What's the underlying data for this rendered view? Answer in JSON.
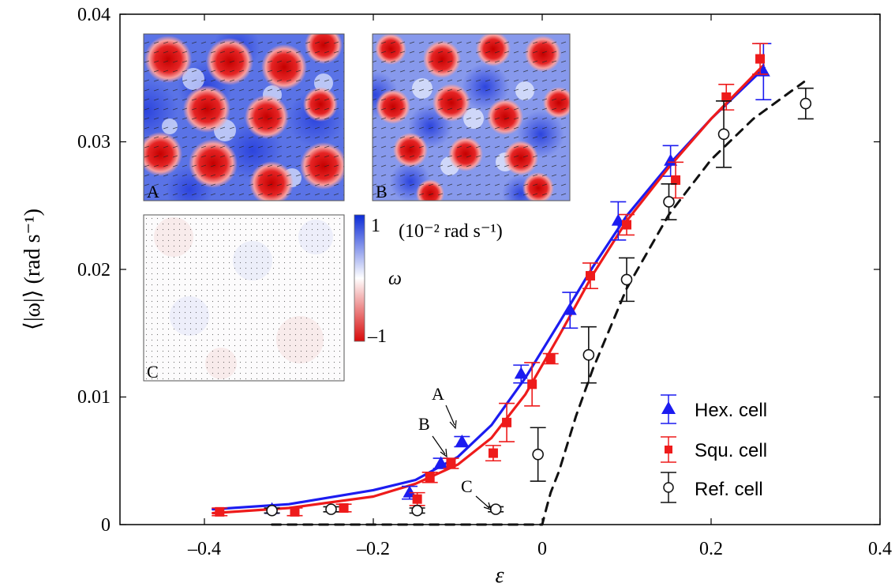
{
  "chart_data": {
    "type": "line",
    "xlabel": "ε",
    "ylabel": "⟨|ω|⟩ (rad s⁻¹)",
    "xlim": [
      -0.5,
      0.4
    ],
    "ylim": [
      0,
      0.04
    ],
    "xticks": [
      -0.4,
      -0.2,
      0,
      0.2,
      0.4
    ],
    "xtick_labels": [
      "–0.4",
      "–0.2",
      "0",
      "0.2",
      "0.4"
    ],
    "yticks": [
      0,
      0.01,
      0.02,
      0.03,
      0.04
    ],
    "ytick_labels": [
      "0",
      "0.01",
      "0.02",
      "0.03",
      "0.04"
    ],
    "grid": false,
    "legend_position": "bottom-right",
    "series": [
      {
        "name": "Hex. cell",
        "color": "#1c1cf0",
        "marker": "triangle",
        "points": [
          {
            "x": -0.32,
            "y": 0.0012,
            "err": 0.0003
          },
          {
            "x": -0.157,
            "y": 0.0025,
            "err": 0.0005
          },
          {
            "x": -0.12,
            "y": 0.0048,
            "err": 0.0004
          },
          {
            "x": -0.095,
            "y": 0.0065,
            "err": 0.0004
          },
          {
            "x": -0.025,
            "y": 0.0118,
            "err": 0.0007
          },
          {
            "x": 0.033,
            "y": 0.0168,
            "err": 0.0014
          },
          {
            "x": 0.09,
            "y": 0.0238,
            "err": 0.0015
          },
          {
            "x": 0.152,
            "y": 0.0285,
            "err": 0.0012
          },
          {
            "x": 0.262,
            "y": 0.0355,
            "err": 0.0022
          }
        ]
      },
      {
        "name": "Squ. cell",
        "color": "#ee1b1b",
        "marker": "square",
        "points": [
          {
            "x": -0.382,
            "y": 0.001,
            "err": 0.0003
          },
          {
            "x": -0.293,
            "y": 0.001,
            "err": 0.0003
          },
          {
            "x": -0.235,
            "y": 0.0013,
            "err": 0.0003
          },
          {
            "x": -0.148,
            "y": 0.002,
            "err": 0.0005
          },
          {
            "x": -0.133,
            "y": 0.0037,
            "err": 0.0004
          },
          {
            "x": -0.108,
            "y": 0.0048,
            "err": 0.0004
          },
          {
            "x": -0.058,
            "y": 0.0056,
            "err": 0.0006
          },
          {
            "x": -0.042,
            "y": 0.008,
            "err": 0.0015
          },
          {
            "x": -0.012,
            "y": 0.011,
            "err": 0.0017
          },
          {
            "x": 0.01,
            "y": 0.013,
            "err": 0.0004
          },
          {
            "x": 0.057,
            "y": 0.0195,
            "err": 0.001
          },
          {
            "x": 0.1,
            "y": 0.0235,
            "err": 0.0008
          },
          {
            "x": 0.158,
            "y": 0.027,
            "err": 0.0014
          },
          {
            "x": 0.218,
            "y": 0.0335,
            "err": 0.001
          },
          {
            "x": 0.258,
            "y": 0.0365,
            "err": 0.0012
          }
        ]
      },
      {
        "name": "Ref. cell",
        "color": "#111111",
        "marker": "circle-open",
        "points": [
          {
            "x": -0.32,
            "y": 0.0011,
            "err": 0.0002
          },
          {
            "x": -0.25,
            "y": 0.0012,
            "err": 0.0002
          },
          {
            "x": -0.148,
            "y": 0.0011,
            "err": 0.0002
          },
          {
            "x": -0.055,
            "y": 0.0012,
            "err": 0.0002
          },
          {
            "x": -0.005,
            "y": 0.0055,
            "err": 0.0021
          },
          {
            "x": 0.055,
            "y": 0.0133,
            "err": 0.0022
          },
          {
            "x": 0.1,
            "y": 0.0192,
            "err": 0.0017
          },
          {
            "x": 0.15,
            "y": 0.0253,
            "err": 0.0014
          },
          {
            "x": 0.215,
            "y": 0.0306,
            "err": 0.0026
          },
          {
            "x": 0.312,
            "y": 0.033,
            "err": 0.0012
          }
        ]
      }
    ],
    "fit_curves": [
      {
        "series": "Hex. cell",
        "color": "#1c1cf0",
        "style": "solid",
        "points": [
          [
            -0.39,
            0.0012
          ],
          [
            -0.3,
            0.0016
          ],
          [
            -0.2,
            0.0027
          ],
          [
            -0.15,
            0.0035
          ],
          [
            -0.1,
            0.0053
          ],
          [
            -0.06,
            0.0078
          ],
          [
            -0.02,
            0.0115
          ],
          [
            0.02,
            0.0158
          ],
          [
            0.06,
            0.0202
          ],
          [
            0.1,
            0.0242
          ],
          [
            0.15,
            0.0282
          ],
          [
            0.2,
            0.0318
          ],
          [
            0.263,
            0.0358
          ]
        ]
      },
      {
        "series": "Squ. cell",
        "color": "#ee1b1b",
        "style": "solid",
        "points": [
          [
            -0.39,
            0.0009
          ],
          [
            -0.3,
            0.0013
          ],
          [
            -0.2,
            0.0022
          ],
          [
            -0.15,
            0.0032
          ],
          [
            -0.1,
            0.0047
          ],
          [
            -0.06,
            0.0068
          ],
          [
            -0.02,
            0.0102
          ],
          [
            0.02,
            0.0148
          ],
          [
            0.06,
            0.0196
          ],
          [
            0.1,
            0.0238
          ],
          [
            0.15,
            0.028
          ],
          [
            0.2,
            0.0318
          ],
          [
            0.262,
            0.036
          ]
        ]
      },
      {
        "series": "Ref. cell",
        "color": "#111111",
        "style": "dashed",
        "points": [
          [
            -0.32,
            0.0
          ],
          [
            0.0,
            0.0
          ],
          [
            0.005,
            0.0013
          ],
          [
            0.01,
            0.0025
          ],
          [
            0.02,
            0.0042
          ],
          [
            0.04,
            0.0085
          ],
          [
            0.06,
            0.0122
          ],
          [
            0.1,
            0.0185
          ],
          [
            0.15,
            0.0243
          ],
          [
            0.2,
            0.0286
          ],
          [
            0.25,
            0.0318
          ],
          [
            0.31,
            0.0347
          ]
        ]
      }
    ],
    "annotations": [
      {
        "text": "A",
        "x": -0.095,
        "y": 0.0065
      },
      {
        "text": "B",
        "x": -0.12,
        "y": 0.0048
      },
      {
        "text": "C",
        "x": -0.055,
        "y": 0.0012
      }
    ],
    "insets": {
      "labels": [
        "A",
        "B",
        "C"
      ],
      "colorbar": {
        "top": "1",
        "bottom": "–1",
        "symbol": "ω",
        "units": "(10⁻² rad s⁻¹)",
        "colors": [
          "#0a2ad6",
          "#ffffff",
          "#d80a0a"
        ]
      }
    }
  }
}
